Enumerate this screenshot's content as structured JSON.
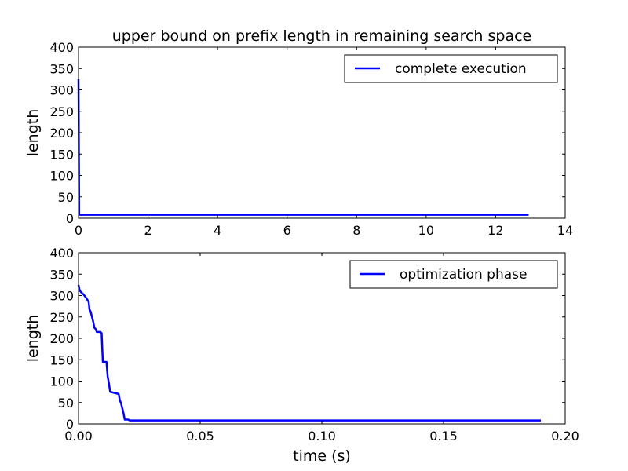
{
  "colors": {
    "series": "#0000ff",
    "frame": "#000000",
    "background": "#ffffff"
  },
  "chart_data": [
    {
      "type": "line",
      "title": "upper bound on prefix length in remaining search space",
      "xlabel": "",
      "ylabel": "length",
      "xlim": [
        0,
        14
      ],
      "ylim": [
        0,
        400
      ],
      "xticks": [
        0,
        2,
        4,
        6,
        8,
        10,
        12,
        14
      ],
      "xtick_labels": [
        "0",
        "2",
        "4",
        "6",
        "8",
        "10",
        "12",
        "14"
      ],
      "yticks": [
        0,
        50,
        100,
        150,
        200,
        250,
        300,
        350,
        400
      ],
      "ytick_labels": [
        "0",
        "50",
        "100",
        "150",
        "200",
        "250",
        "300",
        "350",
        "400"
      ],
      "grid": false,
      "legend": "upper right",
      "series": [
        {
          "name": "complete execution",
          "color": "#0000ff",
          "x": [
            0,
            0.003,
            0.02,
            0.19,
            1,
            5,
            10,
            12.95
          ],
          "y": [
            325,
            285,
            8,
            8,
            8,
            8,
            8,
            8
          ]
        }
      ]
    },
    {
      "type": "line",
      "title": "",
      "xlabel": "time (s)",
      "ylabel": "length",
      "xlim": [
        0,
        0.2
      ],
      "ylim": [
        0,
        400
      ],
      "xticks": [
        0,
        0.05,
        0.1,
        0.15,
        0.2
      ],
      "xtick_labels": [
        "0.00",
        "0.05",
        "0.10",
        "0.15",
        "0.20"
      ],
      "yticks": [
        0,
        50,
        100,
        150,
        200,
        250,
        300,
        350,
        400
      ],
      "ytick_labels": [
        "0",
        "50",
        "100",
        "150",
        "200",
        "250",
        "300",
        "350",
        "400"
      ],
      "grid": false,
      "legend": "upper right",
      "series": [
        {
          "name": "optimization phase",
          "color": "#0000ff",
          "x": [
            0,
            0.0005,
            0.001,
            0.002,
            0.003,
            0.0042,
            0.0045,
            0.005,
            0.006,
            0.0065,
            0.007,
            0.0075,
            0.0085,
            0.009,
            0.0095,
            0.01,
            0.0115,
            0.012,
            0.0125,
            0.013,
            0.0165,
            0.017,
            0.0175,
            0.0185,
            0.019,
            0.0205,
            0.021,
            0.05,
            0.1,
            0.15,
            0.19
          ],
          "y": [
            325,
            312,
            308,
            303,
            296,
            285,
            268,
            262,
            240,
            225,
            222,
            215,
            215,
            215,
            212,
            145,
            145,
            110,
            95,
            75,
            70,
            55,
            48,
            25,
            10,
            10,
            8,
            8,
            8,
            8,
            8
          ]
        }
      ]
    }
  ]
}
